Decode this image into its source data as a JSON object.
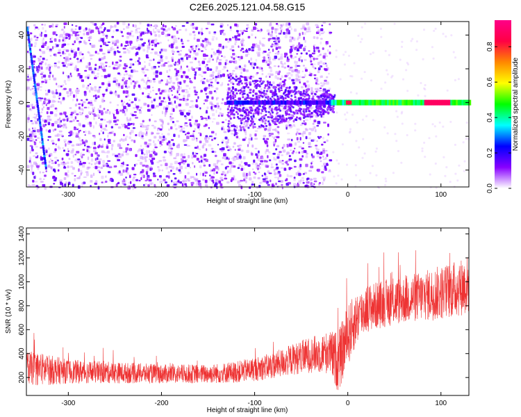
{
  "title": "C2E6.2025.121.04.58.G15",
  "chart_data": [
    {
      "type": "heatmap",
      "title": "C2E6.2025.121.04.58.G15",
      "xlabel": "Height of straight line (km)",
      "ylabel": "Frequency (Hz)",
      "xlim": [
        -345,
        130
      ],
      "ylim": [
        -50,
        48
      ],
      "xticks": [
        -300,
        -200,
        -100,
        0,
        100
      ],
      "yticks": [
        -40,
        -20,
        0,
        20,
        40
      ],
      "colorbar": {
        "label": "Normalized spectral amplitude",
        "range": [
          0.0,
          0.95
        ],
        "ticks": [
          0.0,
          0.2,
          0.4,
          0.6,
          0.8
        ],
        "colormap": "rainbow",
        "colors": [
          "#ffffff",
          "#8800ff",
          "#0000ff",
          "#00ffff",
          "#00ff00",
          "#ffff00",
          "#ff8800",
          "#ff0044",
          "#ff0088"
        ]
      },
      "features": {
        "scatter_region_x": [
          -345,
          -20
        ],
        "scatter_freq_range": [
          -50,
          48
        ],
        "steep_line": {
          "x": [
            -345,
            -325
          ],
          "freq": [
            45,
            -38
          ]
        },
        "central_band": {
          "x": [
            -130,
            130
          ],
          "freq": 0
        },
        "peak_amplitude_x": [
          -5,
          95
        ]
      }
    },
    {
      "type": "line",
      "xlabel": "Height of straight line (km)",
      "ylabel": "SNR (10 * v/v)",
      "xlim": [
        -345,
        130
      ],
      "ylim": [
        50,
        1450
      ],
      "xticks": [
        -300,
        -200,
        -100,
        0,
        100
      ],
      "yticks": [
        200,
        400,
        600,
        800,
        1000,
        1200,
        1400
      ],
      "color": "#ee3333",
      "series": [
        {
          "x": [
            -345,
            -330,
            -300,
            -250,
            -200,
            -150,
            -120,
            -100,
            -80,
            -60,
            -40,
            -20,
            -10,
            0,
            10,
            20,
            40,
            60,
            80,
            100,
            120,
            130
          ],
          "mean": [
            280,
            270,
            250,
            240,
            230,
            230,
            245,
            270,
            300,
            350,
            390,
            410,
            330,
            550,
            700,
            780,
            820,
            850,
            880,
            910,
            950,
            980
          ],
          "spread": [
            140,
            140,
            100,
            90,
            80,
            80,
            90,
            100,
            110,
            130,
            150,
            180,
            260,
            260,
            220,
            200,
            200,
            200,
            210,
            230,
            240,
            250
          ]
        }
      ]
    }
  ]
}
